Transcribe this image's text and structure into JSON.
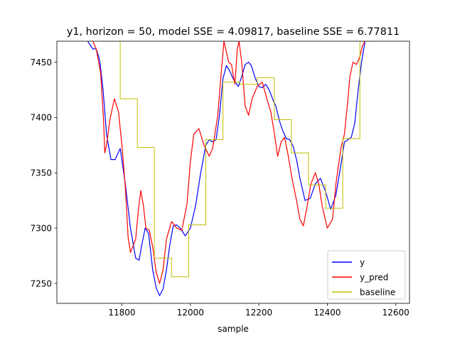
{
  "chart_data": {
    "type": "line",
    "title": "y1, horizon = 50, model SSE = 4.09817, baseline SSE = 6.77811",
    "xlabel": "sample",
    "ylabel": "",
    "xlim": [
      11610,
      12640
    ],
    "ylim": [
      7232,
      7469
    ],
    "xticks": [
      11800,
      12000,
      12200,
      12400,
      12600
    ],
    "yticks": [
      7250,
      7300,
      7350,
      7400,
      7450
    ],
    "grid": false,
    "legend_position": "lower right",
    "series": [
      {
        "name": "y",
        "color": "#0000ff",
        "x": [
          11700,
          11715,
          11725,
          11735,
          11745,
          11755,
          11768,
          11780,
          11795,
          11810,
          11825,
          11840,
          11850,
          11860,
          11868,
          11878,
          11890,
          11900,
          11910,
          11920,
          11930,
          11940,
          11950,
          11960,
          11970,
          11985,
          12000,
          12015,
          12030,
          12045,
          12055,
          12065,
          12075,
          12085,
          12095,
          12105,
          12115,
          12125,
          12140,
          12150,
          12160,
          12170,
          12178,
          12190,
          12200,
          12210,
          12220,
          12230,
          12240,
          12250,
          12260,
          12270,
          12280,
          12290,
          12300,
          12310,
          12320,
          12335,
          12350,
          12365,
          12380,
          12395,
          12410,
          12425,
          12440,
          12450,
          12460,
          12470,
          12480,
          12490,
          12500,
          12510
        ],
        "y": [
          7469,
          7462,
          7462,
          7452,
          7425,
          7385,
          7362,
          7362,
          7372,
          7340,
          7300,
          7273,
          7271,
          7288,
          7300,
          7295,
          7262,
          7246,
          7239,
          7245,
          7262,
          7285,
          7302,
          7303,
          7300,
          7293,
          7300,
          7320,
          7350,
          7375,
          7380,
          7378,
          7380,
          7402,
          7435,
          7447,
          7442,
          7435,
          7428,
          7437,
          7448,
          7450,
          7447,
          7435,
          7428,
          7427,
          7430,
          7425,
          7417,
          7410,
          7397,
          7388,
          7381,
          7380,
          7374,
          7362,
          7345,
          7325,
          7327,
          7340,
          7345,
          7333,
          7317,
          7330,
          7358,
          7378,
          7380,
          7382,
          7395,
          7425,
          7450,
          7469
        ]
      },
      {
        "name": "y_pred",
        "color": "#ff0000",
        "x": [
          11715,
          11725,
          11738,
          11746,
          11750,
          11755,
          11765,
          11778,
          11790,
          11800,
          11810,
          11818,
          11825,
          11840,
          11848,
          11855,
          11863,
          11870,
          11880,
          11890,
          11900,
          11910,
          11920,
          11930,
          11945,
          11960,
          11975,
          11990,
          12000,
          12010,
          12025,
          12040,
          12055,
          12065,
          12080,
          12090,
          12098,
          12103,
          12112,
          12120,
          12130,
          12137,
          12142,
          12150,
          12160,
          12170,
          12180,
          12195,
          12210,
          12225,
          12235,
          12245,
          12255,
          12265,
          12275,
          12285,
          12297,
          12310,
          12320,
          12330,
          12340,
          12352,
          12365,
          12375,
          12385,
          12400,
          12415,
          12425,
          12440,
          12450,
          12458,
          12466,
          12475,
          12485,
          12495,
          12503,
          12510
        ],
        "y": [
          7469,
          7462,
          7440,
          7400,
          7368,
          7375,
          7398,
          7417,
          7405,
          7375,
          7337,
          7292,
          7278,
          7290,
          7316,
          7334,
          7320,
          7300,
          7298,
          7283,
          7260,
          7250,
          7262,
          7290,
          7306,
          7300,
          7298,
          7322,
          7360,
          7385,
          7390,
          7375,
          7365,
          7372,
          7402,
          7440,
          7469,
          7462,
          7450,
          7448,
          7430,
          7462,
          7469,
          7450,
          7410,
          7402,
          7417,
          7428,
          7432,
          7415,
          7405,
          7386,
          7365,
          7378,
          7382,
          7367,
          7345,
          7325,
          7308,
          7302,
          7318,
          7340,
          7350,
          7340,
          7320,
          7300,
          7308,
          7340,
          7373,
          7385,
          7410,
          7437,
          7450,
          7448,
          7455,
          7465,
          7469
        ]
      },
      {
        "name": "baseline",
        "color": "#bfbf00",
        "step": true,
        "x": [
          11745,
          11795,
          11845,
          11895,
          11945,
          11995,
          12045,
          12095,
          12145,
          12195,
          12245,
          12295,
          12345,
          12395,
          12445,
          12495,
          12545
        ],
        "y": [
          7469,
          7417,
          7373,
          7273,
          7256,
          7303,
          7380,
          7432,
          7430,
          7436,
          7398,
          7368,
          7339,
          7318,
          7381,
          7469,
          7469
        ]
      }
    ]
  }
}
